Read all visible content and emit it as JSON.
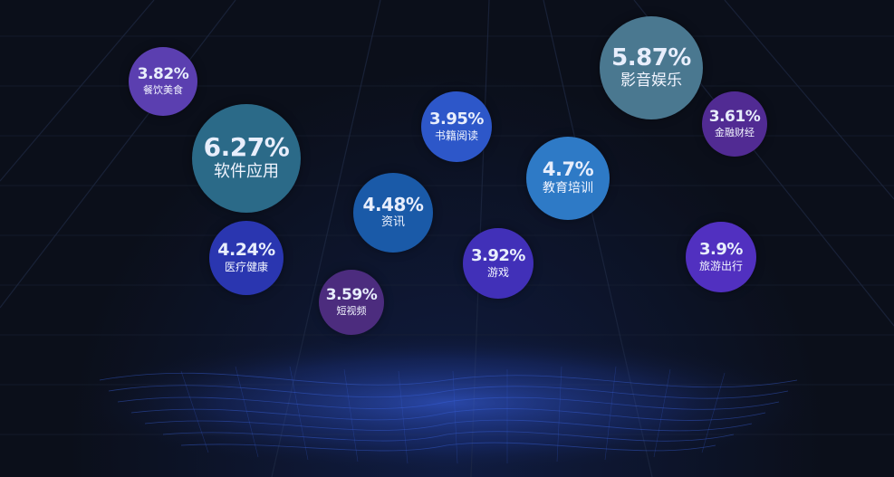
{
  "chart_data": {
    "type": "bubble",
    "title": "",
    "items": [
      {
        "label": "餐饮美食",
        "value": 3.82,
        "value_text": "3.82%",
        "color": "#5b3fb0"
      },
      {
        "label": "软件应用",
        "value": 6.27,
        "value_text": "6.27%",
        "color": "#2b6a88"
      },
      {
        "label": "书籍阅读",
        "value": 3.95,
        "value_text": "3.95%",
        "color": "#2d57c9"
      },
      {
        "label": "影音娱乐",
        "value": 5.87,
        "value_text": "5.87%",
        "color": "#4a7890"
      },
      {
        "label": "金融财经",
        "value": 3.61,
        "value_text": "3.61%",
        "color": "#512b93"
      },
      {
        "label": "教育培训",
        "value": 4.7,
        "value_text": "4.7%",
        "color": "#2e7ac6"
      },
      {
        "label": "资讯",
        "value": 4.48,
        "value_text": "4.48%",
        "color": "#1a5aa8"
      },
      {
        "label": "医疗健康",
        "value": 4.24,
        "value_text": "4.24%",
        "color": "#2a36b0"
      },
      {
        "label": "游戏",
        "value": 3.92,
        "value_text": "3.92%",
        "color": "#4130b8"
      },
      {
        "label": "旅游出行",
        "value": 3.9,
        "value_text": "3.9%",
        "color": "#5130c0"
      },
      {
        "label": "短视频",
        "value": 3.59,
        "value_text": "3.59%",
        "color": "#4c2c7e"
      }
    ]
  }
}
